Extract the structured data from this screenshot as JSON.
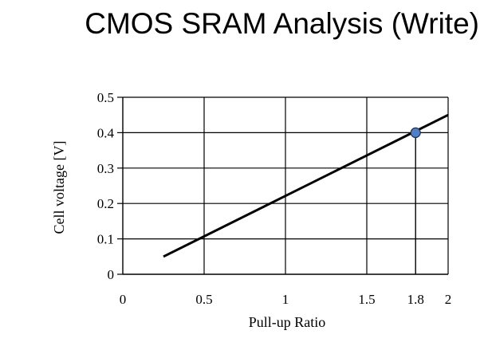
{
  "slide": {
    "title": "CMOS SRAM Analysis (Write)"
  },
  "chart_data": {
    "type": "line",
    "title": "",
    "xlabel": "Pull-up Ratio",
    "ylabel": "Cell voltage [V]",
    "xlim": [
      0,
      2
    ],
    "ylim": [
      0,
      0.5
    ],
    "x_ticks": [
      0,
      0.5,
      1,
      1.5,
      1.8,
      2
    ],
    "x_tick_labels": [
      "0",
      "0.5",
      "1",
      "1.5",
      "1.8",
      "2"
    ],
    "y_ticks": [
      0,
      0.1,
      0.2,
      0.3,
      0.4,
      0.5
    ],
    "y_tick_labels": [
      "0",
      "0.1",
      "0.2",
      "0.3",
      "0.4",
      "0.5"
    ],
    "grid": true,
    "series": [
      {
        "x": [
          0.25,
          2.0
        ],
        "y": [
          0.05,
          0.45
        ],
        "color": "#000000"
      }
    ],
    "annotations": [
      {
        "type": "marker",
        "x": 1.8,
        "y": 0.4,
        "color": "#4F7FC4",
        "drop_line_to_x_axis": true
      }
    ]
  }
}
